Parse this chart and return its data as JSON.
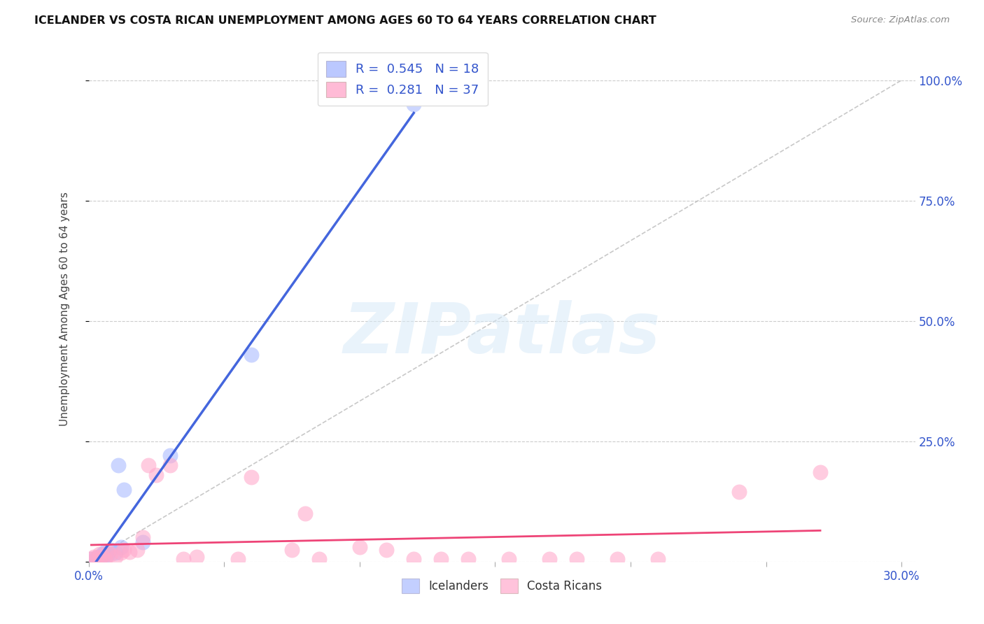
{
  "title": "ICELANDER VS COSTA RICAN UNEMPLOYMENT AMONG AGES 60 TO 64 YEARS CORRELATION CHART",
  "source": "Source: ZipAtlas.com",
  "ylabel": "Unemployment Among Ages 60 to 64 years",
  "xlim": [
    0.0,
    0.305
  ],
  "ylim": [
    0.0,
    1.05
  ],
  "xticks": [
    0.0,
    0.05,
    0.1,
    0.15,
    0.2,
    0.25,
    0.3
  ],
  "xticklabels": [
    "0.0%",
    "",
    "",
    "",
    "",
    "",
    "30.0%"
  ],
  "yticks_right": [
    0.0,
    0.25,
    0.5,
    0.75,
    1.0
  ],
  "ytick_right_labels": [
    "",
    "25.0%",
    "50.0%",
    "75.0%",
    "100.0%"
  ],
  "blue_scatter_color": "#aabbff",
  "pink_scatter_color": "#ffaacc",
  "blue_line_color": "#4466dd",
  "pink_line_color": "#ee4477",
  "watermark": "ZIPatlas",
  "legend_r_blue": "0.545",
  "legend_n_blue": "18",
  "legend_r_pink": "0.281",
  "legend_n_pink": "37",
  "icelanders_x": [
    0.001,
    0.002,
    0.003,
    0.003,
    0.004,
    0.005,
    0.005,
    0.006,
    0.007,
    0.008,
    0.01,
    0.011,
    0.012,
    0.013,
    0.02,
    0.03,
    0.06,
    0.12
  ],
  "icelanders_y": [
    0.005,
    0.003,
    0.008,
    0.006,
    0.002,
    0.015,
    0.005,
    0.02,
    0.015,
    0.025,
    0.018,
    0.2,
    0.03,
    0.15,
    0.04,
    0.22,
    0.43,
    0.95
  ],
  "costa_ricans_x": [
    0.001,
    0.002,
    0.003,
    0.004,
    0.004,
    0.005,
    0.006,
    0.007,
    0.008,
    0.01,
    0.012,
    0.013,
    0.015,
    0.018,
    0.02,
    0.022,
    0.025,
    0.03,
    0.035,
    0.04,
    0.055,
    0.06,
    0.075,
    0.08,
    0.085,
    0.1,
    0.11,
    0.12,
    0.13,
    0.14,
    0.155,
    0.17,
    0.18,
    0.195,
    0.21,
    0.24,
    0.27
  ],
  "costa_ricans_y": [
    0.005,
    0.01,
    0.008,
    0.015,
    0.003,
    0.012,
    0.005,
    0.02,
    0.015,
    0.01,
    0.018,
    0.025,
    0.02,
    0.025,
    0.05,
    0.2,
    0.18,
    0.2,
    0.005,
    0.01,
    0.005,
    0.175,
    0.025,
    0.1,
    0.005,
    0.03,
    0.025,
    0.005,
    0.005,
    0.005,
    0.005,
    0.005,
    0.005,
    0.005,
    0.005,
    0.145,
    0.185
  ],
  "background_color": "#ffffff",
  "grid_color": "#cccccc"
}
